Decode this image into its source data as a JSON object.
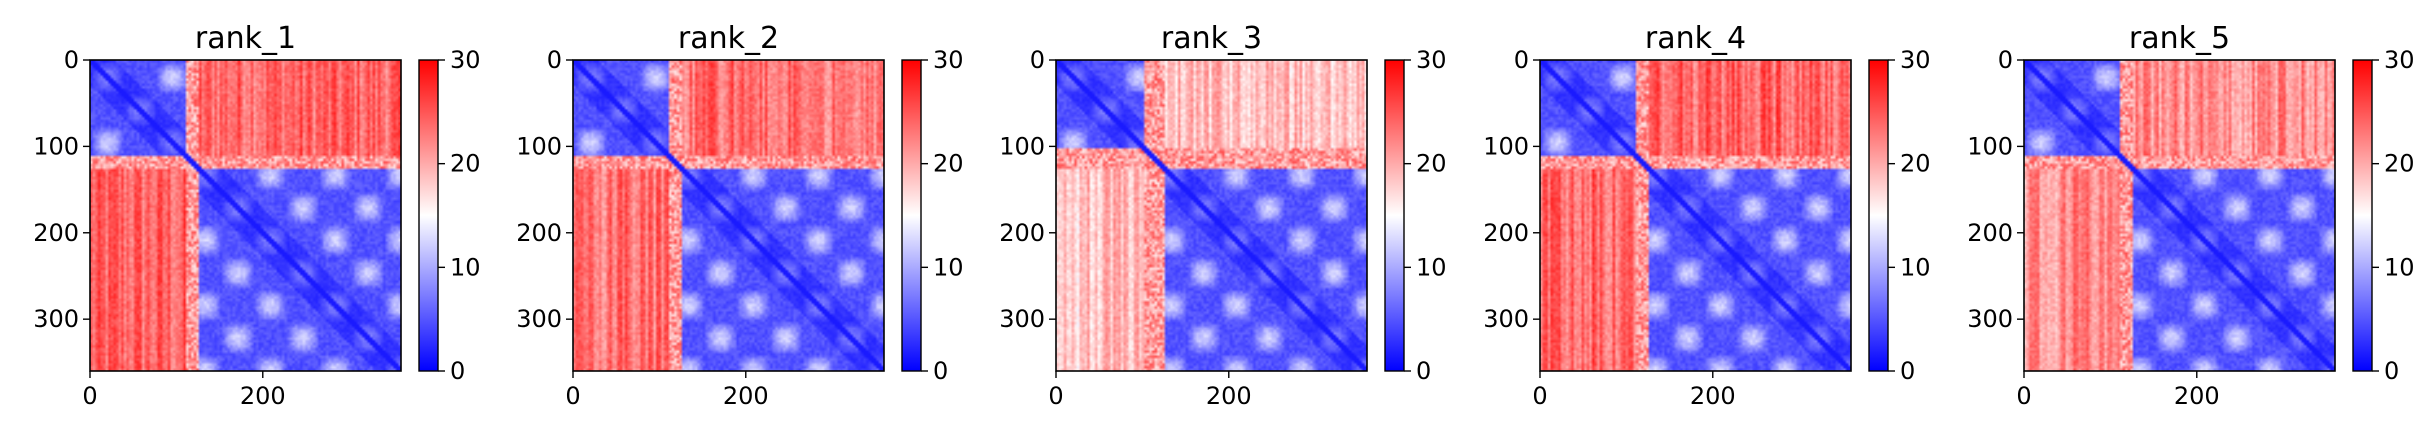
{
  "chart_data": [
    {
      "type": "heatmap",
      "title": "rank_1",
      "n": 360,
      "xticks": [
        0,
        200
      ],
      "yticks": [
        0,
        100,
        200,
        300
      ],
      "colorbar": {
        "min": 0,
        "max": 30,
        "ticks": [
          0,
          10,
          20,
          30
        ],
        "colors": [
          "#0000ff",
          "#ffffff",
          "#ff0000"
        ]
      },
      "domains": [
        [
          0,
          110
        ],
        [
          125,
          360
        ]
      ],
      "inter_domain_level": 0.8
    },
    {
      "type": "heatmap",
      "title": "rank_2",
      "n": 360,
      "xticks": [
        0,
        200
      ],
      "yticks": [
        0,
        100,
        200,
        300
      ],
      "colorbar": {
        "min": 0,
        "max": 30,
        "ticks": [
          0,
          10,
          20,
          30
        ],
        "colors": [
          "#0000ff",
          "#ffffff",
          "#ff0000"
        ]
      },
      "domains": [
        [
          0,
          110
        ],
        [
          125,
          360
        ]
      ],
      "inter_domain_level": 0.78
    },
    {
      "type": "heatmap",
      "title": "rank_3",
      "n": 360,
      "xticks": [
        0,
        200
      ],
      "yticks": [
        0,
        100,
        200,
        300
      ],
      "colorbar": {
        "min": 0,
        "max": 30,
        "ticks": [
          0,
          10,
          20,
          30
        ],
        "colors": [
          "#0000ff",
          "#ffffff",
          "#ff0000"
        ]
      },
      "domains": [
        [
          0,
          100
        ],
        [
          125,
          360
        ]
      ],
      "inter_domain_level": 0.62
    },
    {
      "type": "heatmap",
      "title": "rank_4",
      "n": 360,
      "xticks": [
        0,
        200
      ],
      "yticks": [
        0,
        100,
        200,
        300
      ],
      "colorbar": {
        "min": 0,
        "max": 30,
        "ticks": [
          0,
          10,
          20,
          30
        ],
        "colors": [
          "#0000ff",
          "#ffffff",
          "#ff0000"
        ]
      },
      "domains": [
        [
          0,
          110
        ],
        [
          125,
          360
        ]
      ],
      "inter_domain_level": 0.8
    },
    {
      "type": "heatmap",
      "title": "rank_5",
      "n": 360,
      "xticks": [
        0,
        200
      ],
      "yticks": [
        0,
        100,
        200,
        300
      ],
      "colorbar": {
        "min": 0,
        "max": 30,
        "ticks": [
          0,
          10,
          20,
          30
        ],
        "colors": [
          "#0000ff",
          "#ffffff",
          "#ff0000"
        ]
      },
      "domains": [
        [
          0,
          110
        ],
        [
          125,
          360
        ]
      ],
      "inter_domain_level": 0.72
    }
  ]
}
